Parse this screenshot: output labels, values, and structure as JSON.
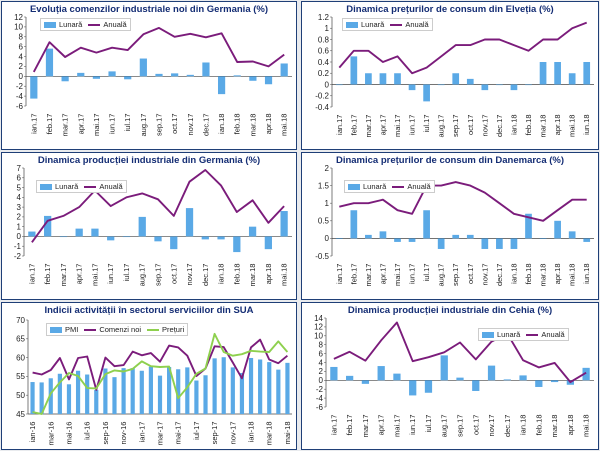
{
  "chart_data": [
    {
      "id": "de_ind",
      "type": "bar+line",
      "title": "Evoluția comenzilor industriale noi din Germania (%)",
      "categories": [
        "ian.17",
        "feb.17",
        "mar.17",
        "apr.17",
        "mai.17",
        "iun.17",
        "iul.17",
        "aug.17",
        "sep.17",
        "oct.17",
        "nov.17",
        "dec.17",
        "ian.18",
        "feb.18",
        "mar.18",
        "apr.18",
        "mai.18"
      ],
      "xticks": [
        "ian.17",
        "feb.17",
        "mar.17",
        "apr.17",
        "mai.17",
        "iun.17",
        "iul.17",
        "aug.17",
        "sep.17",
        "oct.17",
        "nov.17",
        "dec.17",
        "ian.18",
        "feb.18",
        "mar.18",
        "apr.18",
        "mai.18"
      ],
      "series": [
        {
          "name": "Lunară",
          "type": "bar",
          "color": "#5aa9e6",
          "values": [
            -4.5,
            5.6,
            -1.0,
            0.7,
            -0.5,
            1.0,
            -0.6,
            3.6,
            0.5,
            0.6,
            0.3,
            2.8,
            -3.6,
            0.2,
            -0.9,
            -1.6,
            2.6
          ]
        },
        {
          "name": "Anuală",
          "type": "line",
          "color": "#7b1c7b",
          "values": [
            0.9,
            6.9,
            3.9,
            5.8,
            4.8,
            5.8,
            5.3,
            8.5,
            9.8,
            8.0,
            8.6,
            7.9,
            8.7,
            2.9,
            3.0,
            2.0,
            4.4
          ]
        }
      ],
      "ylim": [
        -6,
        12
      ],
      "yticks": [
        -6,
        -4,
        -2,
        0,
        2,
        4,
        6,
        8,
        10,
        12
      ]
    },
    {
      "id": "ch_cpi",
      "type": "bar+line",
      "title": "Dinamica prețurilor de consum din Elveția (%)",
      "categories": [
        "ian.17",
        "feb.17",
        "mar.17",
        "apr.17",
        "mai.17",
        "iun.17",
        "iul.17",
        "aug.17",
        "sep.17",
        "oct.17",
        "nov.17",
        "dec.17",
        "ian.18",
        "feb.18",
        "mar.18",
        "apr.18",
        "mai.18",
        "iun.18"
      ],
      "xticks": [
        "ian.17",
        "feb.17",
        "mar.17",
        "apr.17",
        "mai.17",
        "iun.17",
        "iul.17",
        "aug.17",
        "sep.17",
        "oct.17",
        "nov.17",
        "dec.17",
        "ian.18",
        "feb.18",
        "mar.18",
        "apr.18",
        "mai.18",
        "iun.18"
      ],
      "series": [
        {
          "name": "Lunară",
          "type": "bar",
          "color": "#5aa9e6",
          "values": [
            0.0,
            0.5,
            0.2,
            0.2,
            0.2,
            -0.1,
            -0.3,
            0.0,
            0.2,
            0.1,
            -0.1,
            0.0,
            -0.1,
            0.0,
            0.4,
            0.4,
            0.2,
            0.4
          ]
        },
        {
          "name": "Anuală",
          "type": "line",
          "color": "#7b1c7b",
          "values": [
            0.3,
            0.6,
            0.6,
            0.4,
            0.5,
            0.2,
            0.3,
            0.5,
            0.7,
            0.7,
            0.8,
            0.8,
            0.7,
            0.6,
            0.8,
            0.8,
            1.0,
            1.1
          ]
        }
      ],
      "ylim": [
        -0.4,
        1.2
      ],
      "yticks": [
        -0.4,
        -0.2,
        0,
        0.2,
        0.4,
        0.6,
        0.8,
        1,
        1.2
      ]
    },
    {
      "id": "de_prod",
      "type": "bar+line",
      "title": "Dinamica producției industriale din Germania (%)",
      "categories": [
        "ian.17",
        "feb.17",
        "mar.17",
        "apr.17",
        "mai.17",
        "iun.17",
        "iul.17",
        "aug.17",
        "sep.17",
        "oct.17",
        "nov.17",
        "dec.17",
        "ian.18",
        "feb.18",
        "mar.18",
        "apr.18",
        "mai.18"
      ],
      "xticks": [
        "ian.17",
        "feb.17",
        "mar.17",
        "apr.17",
        "mai.17",
        "iun.17",
        "iul.17",
        "aug.17",
        "sep.17",
        "oct.17",
        "nov.17",
        "dec.17",
        "ian.18",
        "feb.18",
        "mar.18",
        "apr.18",
        "mai.18"
      ],
      "series": [
        {
          "name": "Lunară",
          "type": "bar",
          "color": "#5aa9e6",
          "values": [
            0.5,
            2.1,
            0.0,
            0.8,
            0.8,
            -0.4,
            0.0,
            2.0,
            -0.5,
            -1.3,
            2.9,
            -0.3,
            -0.3,
            -1.6,
            1.0,
            -1.3,
            2.6
          ]
        },
        {
          "name": "Anuală",
          "type": "line",
          "color": "#7b1c7b",
          "values": [
            -0.6,
            1.6,
            2.1,
            3.0,
            4.7,
            3.1,
            4.0,
            4.4,
            3.8,
            2.1,
            5.6,
            6.8,
            5.2,
            2.5,
            3.7,
            1.4,
            3.1
          ]
        }
      ],
      "ylim": [
        -2,
        7
      ],
      "yticks": [
        -2,
        -1,
        0,
        1,
        2,
        3,
        4,
        5,
        6,
        7
      ]
    },
    {
      "id": "dk_cpi",
      "type": "bar+line",
      "title": "Dinamica prețurilor de consum din Danemarca (%)",
      "categories": [
        "ian.17",
        "feb.17",
        "mar.17",
        "apr.17",
        "mai.17",
        "iun.17",
        "iul.17",
        "aug.17",
        "sep.17",
        "oct.17",
        "nov.17",
        "dec.17",
        "ian.18",
        "feb.18",
        "mar.18",
        "apr.18",
        "mai.18",
        "iun.18"
      ],
      "xticks": [
        "ian.17",
        "feb.17",
        "mar.17",
        "apr.17",
        "mai.17",
        "iun.17",
        "iul.17",
        "aug.17",
        "sep.17",
        "oct.17",
        "nov.17",
        "dec.17",
        "ian.18",
        "feb.18",
        "mar.18",
        "apr.18",
        "mai.18",
        "iun.18"
      ],
      "series": [
        {
          "name": "Lunară",
          "type": "bar",
          "color": "#5aa9e6",
          "values": [
            0.0,
            0.8,
            0.1,
            0.2,
            -0.1,
            -0.1,
            0.8,
            -0.3,
            0.1,
            0.1,
            -0.3,
            -0.3,
            -0.3,
            0.7,
            0.0,
            0.5,
            0.2,
            -0.1
          ]
        },
        {
          "name": "Anuală",
          "type": "line",
          "color": "#7b1c7b",
          "values": [
            0.9,
            1.0,
            1.0,
            1.1,
            0.8,
            0.7,
            1.5,
            1.5,
            1.6,
            1.5,
            1.3,
            1.0,
            0.7,
            0.6,
            0.5,
            0.8,
            1.1,
            1.1
          ]
        }
      ],
      "ylim": [
        -0.5,
        2.0
      ],
      "yticks": [
        -0.5,
        0,
        0.5,
        1,
        1.5,
        2
      ]
    },
    {
      "id": "us_srv",
      "type": "bar+line",
      "title": "Indicii activității în sectorul serviciilor din SUA",
      "categories": [
        "ian-16",
        "feb-16",
        "mar-16",
        "apr-16",
        "mai-16",
        "iun-16",
        "iul-16",
        "aug-16",
        "sep-16",
        "oct-16",
        "nov-16",
        "dec-16",
        "ian-17",
        "feb-17",
        "mar-17",
        "apr-17",
        "mai-17",
        "iun-17",
        "iul-17",
        "aug-17",
        "sep-17",
        "oct-17",
        "nov-17",
        "dec-17",
        "ian-18",
        "feb-18",
        "mar-18",
        "apr-18",
        "mai-18"
      ],
      "xticks": [
        "ian-16",
        "mar-16",
        "mai-16",
        "iul-16",
        "sep-16",
        "nov-16",
        "ian-17",
        "mar-17",
        "mai-17",
        "iul-17",
        "sep-17",
        "nov-17",
        "ian-18",
        "mar-18",
        "mai-18"
      ],
      "series": [
        {
          "name": "PMI",
          "type": "bar",
          "color": "#5aa9e6",
          "values": [
            53.5,
            53.4,
            54.5,
            55.7,
            52.9,
            56.5,
            55.5,
            51.4,
            57.1,
            54.8,
            57.2,
            57.2,
            56.5,
            57.6,
            55.2,
            57.5,
            56.9,
            57.4,
            53.9,
            55.3,
            59.8,
            60.1,
            57.4,
            55.9,
            59.9,
            59.5,
            58.8,
            56.8,
            58.6
          ]
        },
        {
          "name": "Comenzi noi",
          "type": "line",
          "color": "#7b1c7b",
          "values": [
            56.0,
            55.5,
            56.7,
            59.9,
            54.2,
            59.9,
            60.3,
            51.4,
            60.0,
            57.7,
            58.0,
            61.6,
            60.6,
            61.2,
            58.9,
            63.2,
            62.7,
            60.5,
            55.1,
            57.1,
            63.0,
            62.8,
            58.7,
            54.5,
            62.7,
            64.8,
            59.5,
            58.5,
            60.5
          ]
        },
        {
          "name": "Prețuri",
          "type": "line",
          "color": "#8ed04e",
          "values": [
            45.5,
            45.0,
            50.5,
            53.4,
            55.9,
            55.1,
            51.9,
            51.8,
            55.6,
            56.6,
            56.3,
            57.0,
            59.0,
            57.7,
            57.5,
            57.6,
            49.2,
            52.1,
            55.7,
            57.1,
            66.3,
            61.5,
            60.5,
            60.9,
            61.8,
            61.6,
            61.5,
            64.3,
            61.5
          ]
        }
      ],
      "ylim": [
        45,
        70
      ],
      "yticks": [
        45,
        50,
        55,
        60,
        65,
        70
      ]
    },
    {
      "id": "cz_prod",
      "type": "bar+line",
      "title": "Dinamica producției industriale din Cehia (%)",
      "categories": [
        "ian.17",
        "feb.17",
        "mar.17",
        "apr.17",
        "mai.17",
        "iun.17",
        "iul.17",
        "aug.17",
        "sep.17",
        "oct.17",
        "nov.17",
        "dec.17",
        "ian.18",
        "feb.18",
        "mar.18",
        "apr.18",
        "mai.18"
      ],
      "xticks": [
        "ian.17",
        "feb.17",
        "mar.17",
        "apr.17",
        "mai.17",
        "iun.17",
        "iul.17",
        "aug.17",
        "sep.17",
        "oct.17",
        "nov.17",
        "dec.17",
        "ian.18",
        "feb.18",
        "mar.18",
        "apr.18",
        "mai.18"
      ],
      "series": [
        {
          "name": "Lunară",
          "type": "bar",
          "color": "#5aa9e6",
          "values": [
            3.0,
            1.0,
            -0.8,
            3.2,
            1.5,
            -3.4,
            -2.8,
            5.6,
            0.6,
            -2.4,
            3.3,
            0.2,
            1.1,
            -1.5,
            -0.4,
            -1.0,
            2.8
          ]
        },
        {
          "name": "Anuală",
          "type": "line",
          "color": "#7b1c7b",
          "values": [
            4.8,
            6.4,
            4.4,
            9.0,
            13.0,
            4.3,
            5.2,
            6.3,
            8.5,
            4.7,
            8.7,
            10.5,
            4.5,
            2.9,
            3.9,
            -0.4,
            1.7
          ]
        }
      ],
      "ylim": [
        -6,
        14
      ],
      "yticks": [
        -6,
        -4,
        -2,
        0,
        2,
        4,
        6,
        8,
        10,
        12,
        14
      ]
    }
  ]
}
